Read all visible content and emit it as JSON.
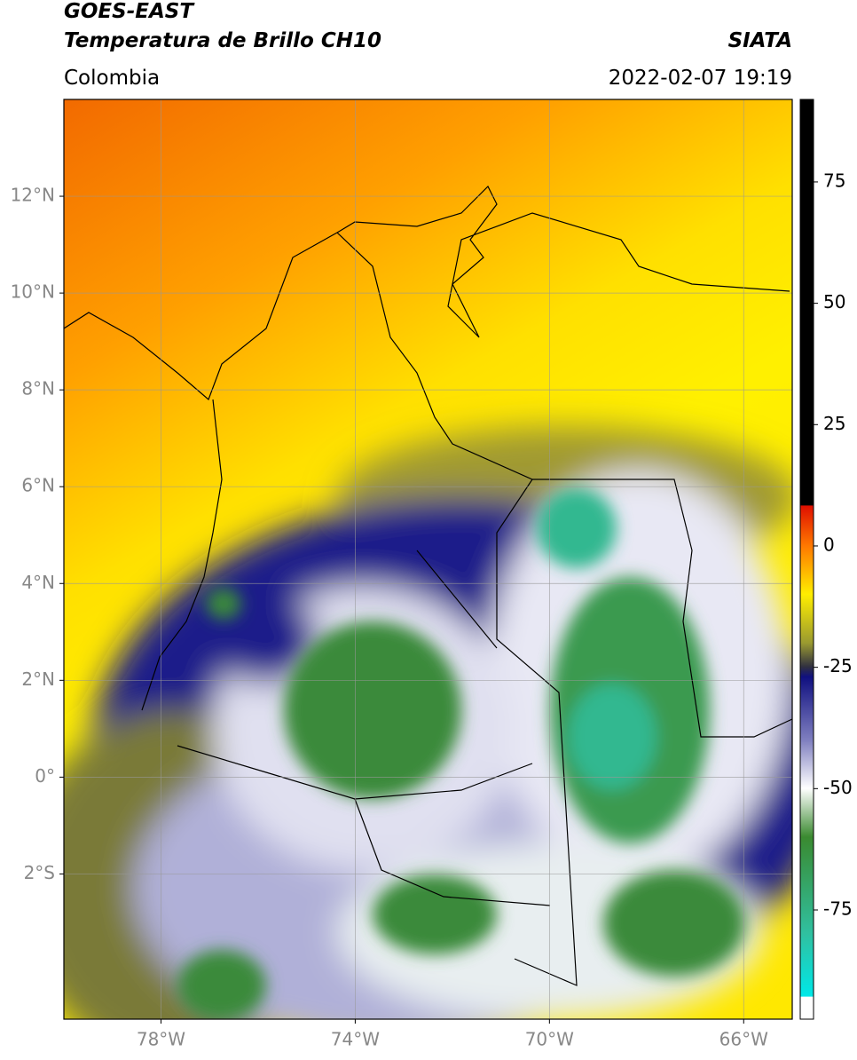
{
  "header": {
    "title": "GOES-EAST",
    "subtitle": "Temperatura de Brillo CH10",
    "region": "Colombia",
    "source": "SIATA",
    "timestamp": "2022-02-07 19:19"
  },
  "map": {
    "xlim": [
      -80,
      -65
    ],
    "ylim": [
      -5,
      14
    ],
    "xticks": [
      {
        "value": -78,
        "label": "78°W"
      },
      {
        "value": -74,
        "label": "74°W"
      },
      {
        "value": -70,
        "label": "70°W"
      },
      {
        "value": -66,
        "label": "66°W"
      }
    ],
    "yticks": [
      {
        "value": 12,
        "label": "12°N"
      },
      {
        "value": 10,
        "label": "10°N"
      },
      {
        "value": 8,
        "label": "8°N"
      },
      {
        "value": 6,
        "label": "6°N"
      },
      {
        "value": 4,
        "label": "4°N"
      },
      {
        "value": 2,
        "label": "2°N"
      },
      {
        "value": 0,
        "label": "0°"
      },
      {
        "value": -2,
        "label": "2°S"
      }
    ],
    "grid": true
  },
  "colorbar": {
    "lim": [
      -97.5,
      92
    ],
    "ticks": [
      75,
      50,
      25,
      0,
      -25,
      -50,
      -75
    ]
  }
}
